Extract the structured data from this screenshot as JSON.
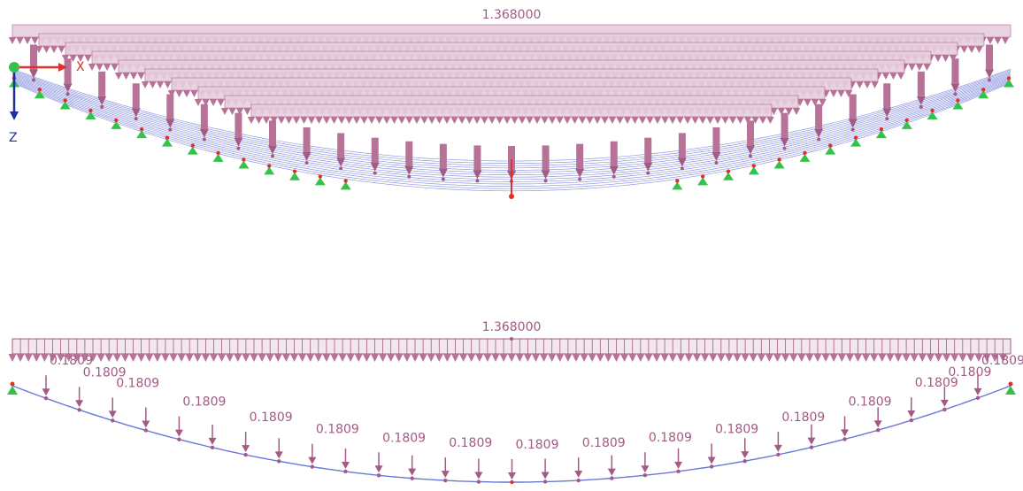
{
  "colors": {
    "load": "#a25b83",
    "load_fill": "#b77397",
    "load_light": "#e7cfdd",
    "cable": "#6b76d8",
    "support": "#34c24a",
    "node": "#e0302b",
    "axis_x": "#e0302b",
    "axis_z": "#1f2e9e"
  },
  "top_view": {
    "load_label": "1.368000",
    "axes": {
      "x_label": "X",
      "z_label": "Z"
    }
  },
  "bottom_view": {
    "load_label": "1.368000",
    "point_load_value": "0.1809",
    "point_load_count": 29
  }
}
